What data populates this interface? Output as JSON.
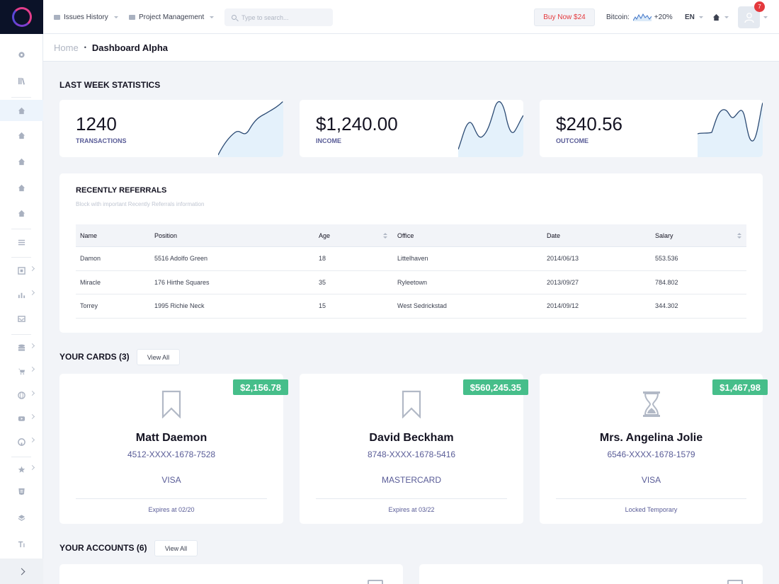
{
  "topbar": {
    "issues_history": "Issues History",
    "project_management": "Project Management",
    "search_placeholder": "Type to search...",
    "buy_now": "Buy Now $24",
    "bitcoin_label": "Bitcoin:",
    "bitcoin_change": "+20%",
    "language": "EN",
    "notifications_count": "7"
  },
  "breadcrumb": {
    "home": "Home",
    "separator": "•",
    "current": "Dashboard Alpha"
  },
  "stats": {
    "title": "LAST WEEK STATISTICS",
    "cards": [
      {
        "value": "1240",
        "label": "TRANSACTIONS"
      },
      {
        "value": "$1,240.00",
        "label": "INCOME"
      },
      {
        "value": "$240.56",
        "label": "OUTCOME"
      }
    ]
  },
  "referrals": {
    "title": "RECENTLY REFERRALS",
    "subtitle": "Block with important Recently Referrals information",
    "columns": [
      "Name",
      "Position",
      "Age",
      "Office",
      "Date",
      "Salary"
    ],
    "rows": [
      [
        "Damon",
        "5516 Adolfo Green",
        "18",
        "Littelhaven",
        "2014/06/13",
        "553.536"
      ],
      [
        "Miracle",
        "176 Hirthe Squares",
        "35",
        "Ryleetown",
        "2013/09/27",
        "784.802"
      ],
      [
        "Torrey",
        "1995 Richie Neck",
        "15",
        "West Sedrickstad",
        "2014/09/12",
        "344.302"
      ]
    ]
  },
  "cards_section": {
    "title": "YOUR CARDS (3)",
    "view_all": "View All",
    "cards": [
      {
        "amount": "$2,156.78",
        "name": "Matt Daemon",
        "number": "4512-XXXX-1678-7528",
        "type": "VISA",
        "footer": "Expires at 02/20",
        "icon": "bookmark-icon"
      },
      {
        "amount": "$560,245.35",
        "name": "David Beckham",
        "number": "8748-XXXX-1678-5416",
        "type": "MASTERCARD",
        "footer": "Expires at 03/22",
        "icon": "bookmark-icon"
      },
      {
        "amount": "$1,467,98",
        "name": "Mrs. Angelina Jolie",
        "number": "6546-XXXX-1678-1579",
        "type": "VISA",
        "footer": "Locked Temporary",
        "icon": "hourglass-icon"
      }
    ]
  },
  "accounts_section": {
    "title": "YOUR ACCOUNTS (6)",
    "view_all": "View All"
  },
  "colors": {
    "accent_green": "#46be8a",
    "danger_red": "#e4393d",
    "spark_line": "#2b4a73",
    "spark_fill": "#e4f1fb"
  }
}
